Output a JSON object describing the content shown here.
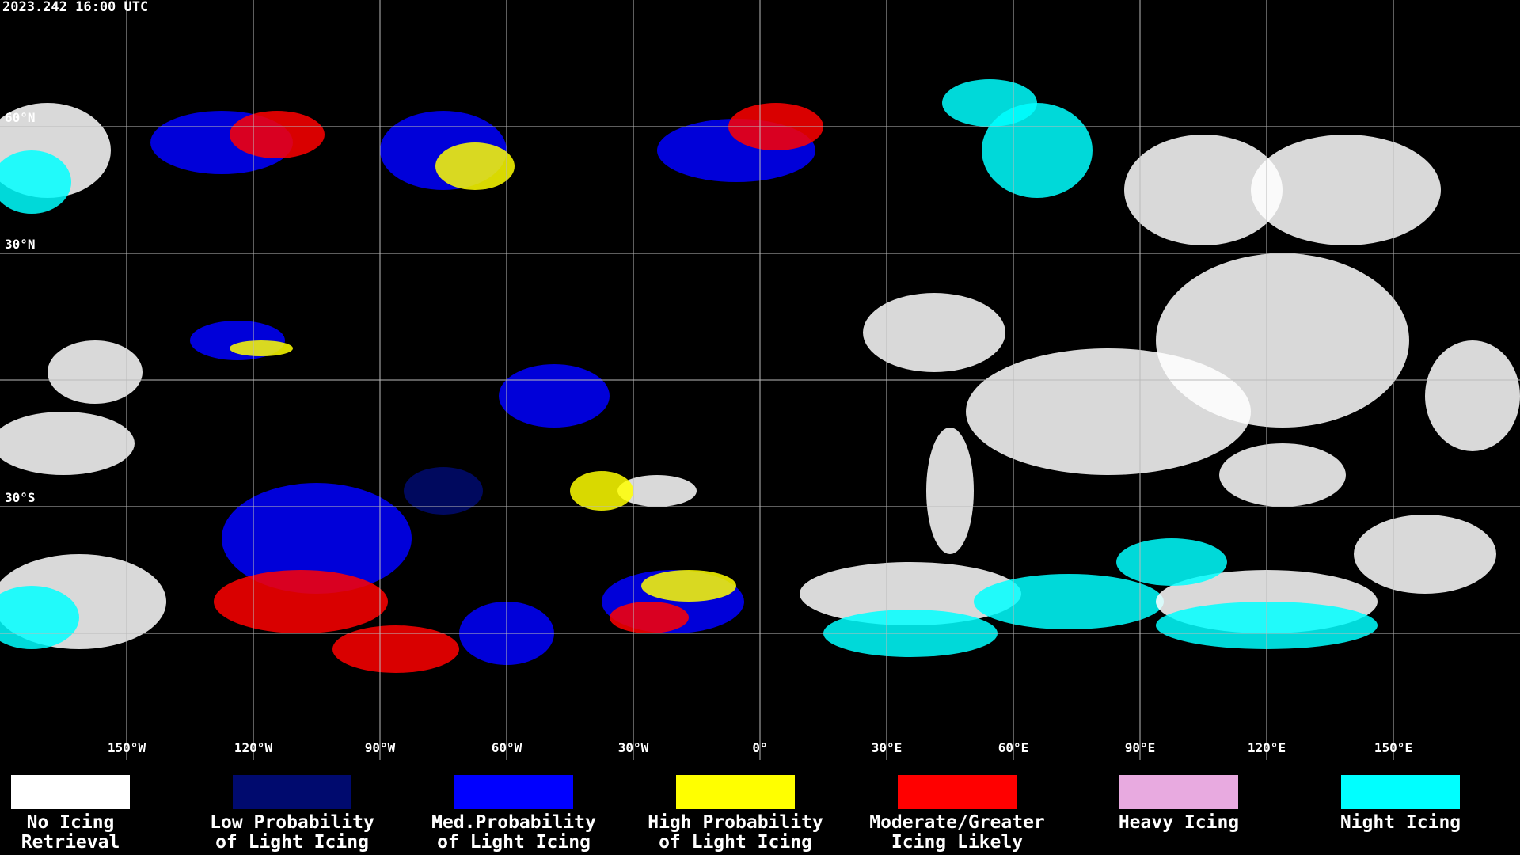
{
  "header": {
    "title": "2023.242 16:00 UTC"
  },
  "map": {
    "lon_labels": [
      {
        "value": -150,
        "label": "150°W"
      },
      {
        "value": -120,
        "label": "120°W"
      },
      {
        "value": -90,
        "label": "90°W"
      },
      {
        "value": -60,
        "label": "60°W"
      },
      {
        "value": -30,
        "label": "30°W"
      },
      {
        "value": 0,
        "label": "0°"
      },
      {
        "value": 30,
        "label": "30°E"
      },
      {
        "value": 60,
        "label": "60°E"
      },
      {
        "value": 90,
        "label": "90°E"
      },
      {
        "value": 120,
        "label": "120°E"
      },
      {
        "value": 150,
        "label": "150°E"
      }
    ],
    "lat_labels": [
      {
        "value": 60,
        "label": "60°N"
      },
      {
        "value": 30,
        "label": "30°N"
      },
      {
        "value": -30,
        "label": "30°S"
      }
    ],
    "grid_lats": [
      60,
      30,
      0,
      -30,
      -60
    ]
  },
  "legend": [
    {
      "lines": [
        "No Icing",
        "Retrieval"
      ],
      "color": "#ffffff"
    },
    {
      "lines": [
        "Low Probability",
        "of Light Icing"
      ],
      "color": "#000a6e"
    },
    {
      "lines": [
        "Med.Probability",
        "of Light Icing"
      ],
      "color": "#0000ff"
    },
    {
      "lines": [
        "High Probability",
        "of Light Icing"
      ],
      "color": "#ffff00"
    },
    {
      "lines": [
        "Moderate/Greater",
        "Icing Likely"
      ],
      "color": "#ff0000"
    },
    {
      "lines": [
        "Heavy Icing"
      ],
      "color": "#e8aae0"
    },
    {
      "lines": [
        "Night Icing"
      ],
      "color": "#00ffff"
    }
  ]
}
